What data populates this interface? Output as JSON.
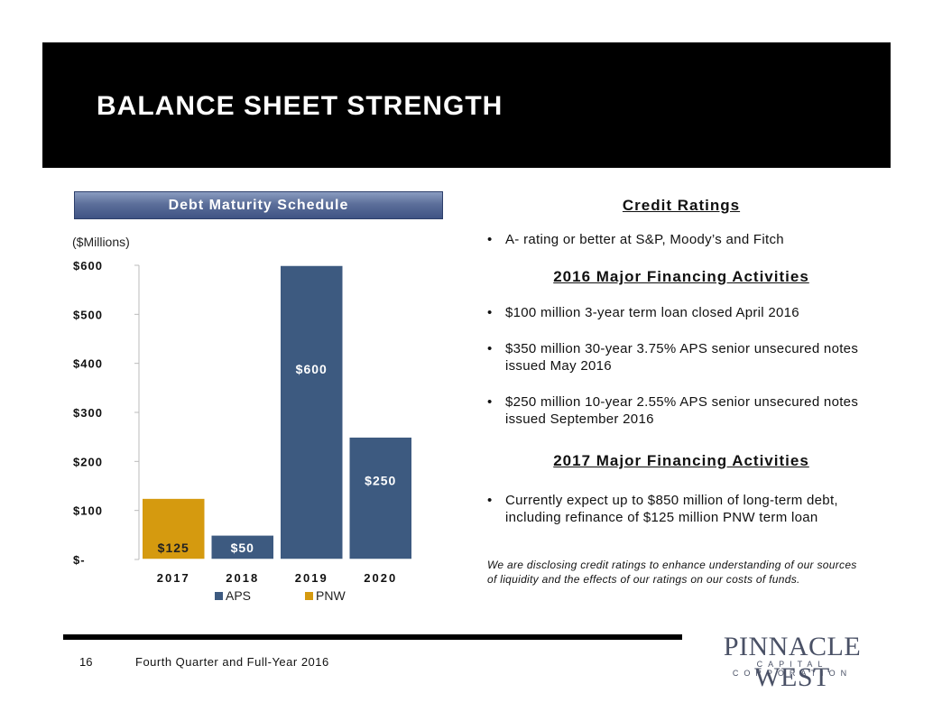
{
  "header": {
    "title": "BALANCE SHEET STRENGTH"
  },
  "chart_banner": "Debt Maturity Schedule",
  "chart_units": "($Millions)",
  "chart_data": {
    "type": "bar",
    "stacked": true,
    "categories": [
      "2017",
      "2018",
      "2019",
      "2020"
    ],
    "series": [
      {
        "name": "APS",
        "color": "#3d5a80",
        "values": [
          0,
          50,
          600,
          250
        ]
      },
      {
        "name": "PNW",
        "color": "#d59a0f",
        "values": [
          125,
          0,
          0,
          0
        ]
      }
    ],
    "data_labels": [
      "$125",
      "$50",
      "$600",
      "$250"
    ],
    "ylim": [
      0,
      600
    ],
    "yticks": [
      0,
      100,
      200,
      300,
      400,
      500,
      600
    ],
    "ytick_labels": [
      "$-",
      "$100",
      "$200",
      "$300",
      "$400",
      "$500",
      "$600"
    ],
    "legend_position": "bottom",
    "grid": false
  },
  "credit": {
    "heading": "Credit Ratings",
    "bullets": [
      "A- rating or better at S&P, Moody’s and Fitch"
    ]
  },
  "financing_2016": {
    "heading": "2016 Major Financing Activities",
    "bullets": [
      "$100 million 3-year term loan closed April 2016",
      "$350 million 30-year 3.75% APS senior unsecured notes issued May 2016",
      "$250 million 10-year 2.55% APS senior unsecured notes issued September 2016"
    ]
  },
  "financing_2017": {
    "heading": "2017 Major Financing Activities",
    "bullets": [
      "Currently expect up to $850 million of long-term debt, including refinance of $125 million PNW term loan"
    ]
  },
  "footnote": "We are disclosing credit ratings to enhance understanding of our sources of liquidity and the effects of our ratings on our costs of funds.",
  "footer": {
    "page_number": "16",
    "text": "Fourth Quarter and Full-Year 2016"
  },
  "logo": {
    "name": "PINNACLE WEST",
    "sub": "CAPITAL CORPORATION"
  }
}
